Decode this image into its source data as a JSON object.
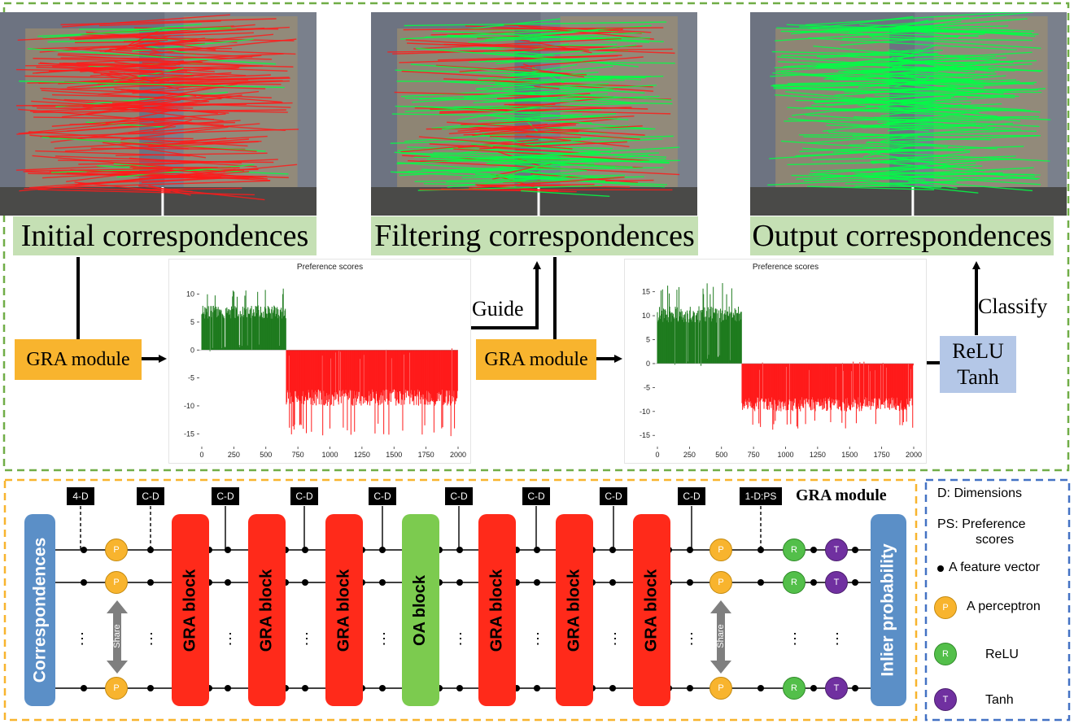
{
  "top_panel": {
    "stage_labels": [
      "Initial correspondences",
      "Filtering correspondences",
      "Output correspondences"
    ],
    "gra_module_label": "GRA module",
    "relu_tanh": [
      "ReLU",
      "Tanh"
    ],
    "guide_label": "Guide",
    "classify_label": "Classify"
  },
  "charts": [
    {
      "type": "bar",
      "title": "Preference scores",
      "xlim": [
        0,
        2000
      ],
      "ylim": [
        -17,
        13
      ],
      "xticks": [
        "0",
        "250",
        "500",
        "750",
        "1000",
        "1250",
        "1500",
        "1750",
        "2000"
      ],
      "yticks": [
        "10",
        "5",
        "0",
        "-5",
        "-10",
        "-15"
      ],
      "series": [
        {
          "color": "#1e7b1e",
          "x_range": [
            0,
            660
          ],
          "typical": 8,
          "peak": 11
        },
        {
          "color": "#ff1a1a",
          "x_range": [
            660,
            2000
          ],
          "typical": -10,
          "peak": -15.5
        }
      ]
    },
    {
      "type": "bar",
      "title": "Preference scores",
      "xlim": [
        0,
        2000
      ],
      "ylim": [
        -17,
        18
      ],
      "xticks": [
        "0",
        "250",
        "500",
        "750",
        "1000",
        "1250",
        "1500",
        "1750",
        "2000"
      ],
      "yticks": [
        "15",
        "10",
        "5",
        "0",
        "-5",
        "-10",
        "-15"
      ],
      "series": [
        {
          "color": "#1e7b1e",
          "x_range": [
            0,
            660
          ],
          "typical": 12,
          "peak": 17
        },
        {
          "color": "#ff1a1a",
          "x_range": [
            660,
            2000
          ],
          "typical": -10,
          "peak": -14
        }
      ]
    }
  ],
  "bottom_panel": {
    "title": "GRA module",
    "input_block": "Correspondences",
    "output_block": "Inlier probability",
    "blocks": [
      "GRA  block",
      "GRA  block",
      "GRA  block",
      "OA block",
      "GRA  block",
      "GRA  block",
      "GRA  block"
    ],
    "dimension_tags": [
      "4-D",
      "C-D",
      "C-D",
      "C-D",
      "C-D",
      "C-D",
      "C-D",
      "C-D",
      "C-D",
      "1-D:PS"
    ],
    "share_label": "Share",
    "node_letters": {
      "perceptron": "P",
      "relu": "R",
      "tanh": "T"
    }
  },
  "legend": {
    "dimensions": "D:  Dimensions",
    "ps_line1": "PS:  Preference",
    "ps_line2": "scores",
    "feature_vector": "A feature vector",
    "perceptron": "A perceptron",
    "relu": "ReLU",
    "tanh": "Tanh"
  },
  "colors": {
    "top_border": "#70ad47",
    "bottom_border": "#f8b42e",
    "legend_border": "#4472c4",
    "label_green": "#c5e0b4",
    "gra_orange": "#f8b42e",
    "relu_tanh_blue": "#b4c7e7",
    "block_red": "#ff2a1a",
    "block_green": "#7ccb4f",
    "side_blue": "#5b8fc7",
    "inlier": "#00ff44",
    "outlier": "#ff1a1a"
  }
}
